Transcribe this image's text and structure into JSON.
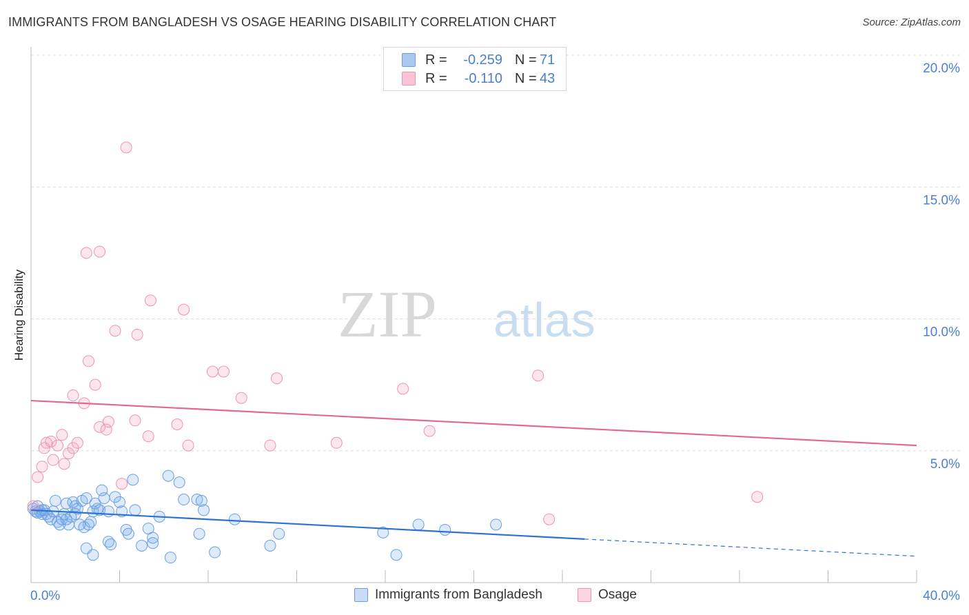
{
  "header": {
    "title": "IMMIGRANTS FROM BANGLADESH VS OSAGE HEARING DISABILITY CORRELATION CHART",
    "source": "Source: ZipAtlas.com"
  },
  "watermark": {
    "part1": "ZIP",
    "part2": "atlas"
  },
  "legend": {
    "rows": [
      {
        "r_label": "R =",
        "r_value": "-0.259",
        "n_label": "N =",
        "n_value": "71",
        "color": "#a8c8f0",
        "border": "#6a9ee0"
      },
      {
        "r_label": "R =",
        "r_value": "-0.110",
        "n_label": "N =",
        "n_value": "43",
        "color": "#f8c4d4",
        "border": "#ec94b0"
      }
    ]
  },
  "bottom_legend": {
    "items": [
      {
        "label": "Immigrants from Bangladesh",
        "color": "#c8dcf6",
        "border": "#6a9ee0"
      },
      {
        "label": "Osage",
        "color": "#fad4e0",
        "border": "#ec94b0"
      }
    ]
  },
  "colors": {
    "blue_fill": "rgba(120,170,235,0.25)",
    "blue_stroke": "#6a9ee0",
    "blue_line": "#2f72d0",
    "pink_fill": "rgba(245,160,190,0.25)",
    "pink_stroke": "#ec94b0",
    "pink_line": "#e06a94",
    "grid": "#dcdcdc",
    "tick_label": "#4a7fd4",
    "axis_text": "#222222"
  },
  "chart_data": {
    "type": "scatter",
    "title": "IMMIGRANTS FROM BANGLADESH VS OSAGE HEARING DISABILITY CORRELATION CHART",
    "xlabel": "",
    "ylabel": "Hearing Disability",
    "xlim": [
      0,
      40
    ],
    "ylim": [
      0,
      20
    ],
    "x_tick_labels": [
      {
        "value": 0,
        "label": "0.0%"
      },
      {
        "value": 40,
        "label": "40.0%"
      }
    ],
    "y_tick_labels": [
      {
        "value": 5,
        "label": "5.0%"
      },
      {
        "value": 10,
        "label": "10.0%"
      },
      {
        "value": 15,
        "label": "15.0%"
      },
      {
        "value": 20,
        "label": "20.0%"
      }
    ],
    "grid": true,
    "legend_position": "top-center",
    "series": [
      {
        "name": "Immigrants from Bangladesh",
        "r": -0.259,
        "n": 71,
        "trend": {
          "x1": 0,
          "y1": 2.75,
          "x2": 25,
          "y2": 1.65,
          "dash_to_x": 40,
          "dash_to_y": 1.0
        },
        "points": [
          [
            0.1,
            2.8
          ],
          [
            0.2,
            2.7
          ],
          [
            0.3,
            2.65
          ],
          [
            0.4,
            2.7
          ],
          [
            0.5,
            2.6
          ],
          [
            0.6,
            2.75
          ],
          [
            0.7,
            2.6
          ],
          [
            0.8,
            2.5
          ],
          [
            0.9,
            2.4
          ],
          [
            1.0,
            2.7
          ],
          [
            1.1,
            3.1
          ],
          [
            1.2,
            2.3
          ],
          [
            1.3,
            2.2
          ],
          [
            1.4,
            2.4
          ],
          [
            1.5,
            2.6
          ],
          [
            1.6,
            3.0
          ],
          [
            1.7,
            2.2
          ],
          [
            1.8,
            2.5
          ],
          [
            1.9,
            3.05
          ],
          [
            2.0,
            2.9
          ],
          [
            2.1,
            2.8
          ],
          [
            2.2,
            2.2
          ],
          [
            2.3,
            3.1
          ],
          [
            2.4,
            2.1
          ],
          [
            2.5,
            3.2
          ],
          [
            2.6,
            2.2
          ],
          [
            2.7,
            2.3
          ],
          [
            2.8,
            2.7
          ],
          [
            2.9,
            3.0
          ],
          [
            3.0,
            2.8
          ],
          [
            3.1,
            2.75
          ],
          [
            3.2,
            3.5
          ],
          [
            3.3,
            3.2
          ],
          [
            3.5,
            2.7
          ],
          [
            3.8,
            3.25
          ],
          [
            4.0,
            3.05
          ],
          [
            4.1,
            2.7
          ],
          [
            4.3,
            2.0
          ],
          [
            4.4,
            1.85
          ],
          [
            4.6,
            3.9
          ],
          [
            4.7,
            2.75
          ],
          [
            5.0,
            1.4
          ],
          [
            5.3,
            2.05
          ],
          [
            5.5,
            1.7
          ],
          [
            5.8,
            2.5
          ],
          [
            6.2,
            4.05
          ],
          [
            6.7,
            3.8
          ],
          [
            6.9,
            3.15
          ],
          [
            7.5,
            3.15
          ],
          [
            7.7,
            3.1
          ],
          [
            7.8,
            2.75
          ],
          [
            8.3,
            1.15
          ],
          [
            9.2,
            2.4
          ],
          [
            7.6,
            1.85
          ],
          [
            10.8,
            1.4
          ],
          [
            11.2,
            1.85
          ],
          [
            15.9,
            1.9
          ],
          [
            16.5,
            1.05
          ],
          [
            17.5,
            2.2
          ],
          [
            18.7,
            2.0
          ],
          [
            21.0,
            2.2
          ],
          [
            2.5,
            1.3
          ],
          [
            2.8,
            1.05
          ],
          [
            3.5,
            1.55
          ],
          [
            3.6,
            1.45
          ],
          [
            5.5,
            1.5
          ],
          [
            6.3,
            0.95
          ],
          [
            1.6,
            2.4
          ],
          [
            0.5,
            2.75
          ],
          [
            0.3,
            2.9
          ],
          [
            2.0,
            2.6
          ]
        ]
      },
      {
        "name": "Osage",
        "r": -0.11,
        "n": 43,
        "trend": {
          "x1": 0,
          "y1": 6.9,
          "x2": 40,
          "y2": 5.2
        },
        "points": [
          [
            0.3,
            4.0
          ],
          [
            0.5,
            4.4
          ],
          [
            0.6,
            5.1
          ],
          [
            0.7,
            5.3
          ],
          [
            0.9,
            5.35
          ],
          [
            1.0,
            4.65
          ],
          [
            1.2,
            5.2
          ],
          [
            1.4,
            5.6
          ],
          [
            1.5,
            4.5
          ],
          [
            1.7,
            4.9
          ],
          [
            1.9,
            5.1
          ],
          [
            2.1,
            5.3
          ],
          [
            1.9,
            7.1
          ],
          [
            2.4,
            6.8
          ],
          [
            2.6,
            8.4
          ],
          [
            2.9,
            7.5
          ],
          [
            3.1,
            5.9
          ],
          [
            3.4,
            5.8
          ],
          [
            3.5,
            6.1
          ],
          [
            3.8,
            9.55
          ],
          [
            4.1,
            3.75
          ],
          [
            4.3,
            16.5
          ],
          [
            2.5,
            12.5
          ],
          [
            3.1,
            12.55
          ],
          [
            4.7,
            6.15
          ],
          [
            4.8,
            9.4
          ],
          [
            5.3,
            5.55
          ],
          [
            5.4,
            10.7
          ],
          [
            6.6,
            6.0
          ],
          [
            6.9,
            10.35
          ],
          [
            7.1,
            5.2
          ],
          [
            8.2,
            8.0
          ],
          [
            8.7,
            8.0
          ],
          [
            9.5,
            7.0
          ],
          [
            10.8,
            5.2
          ],
          [
            11.1,
            7.75
          ],
          [
            13.8,
            5.3
          ],
          [
            16.8,
            7.35
          ],
          [
            18.0,
            5.75
          ],
          [
            22.9,
            7.85
          ],
          [
            23.4,
            2.4
          ],
          [
            32.8,
            3.25
          ],
          [
            0.1,
            2.9
          ]
        ]
      }
    ]
  }
}
